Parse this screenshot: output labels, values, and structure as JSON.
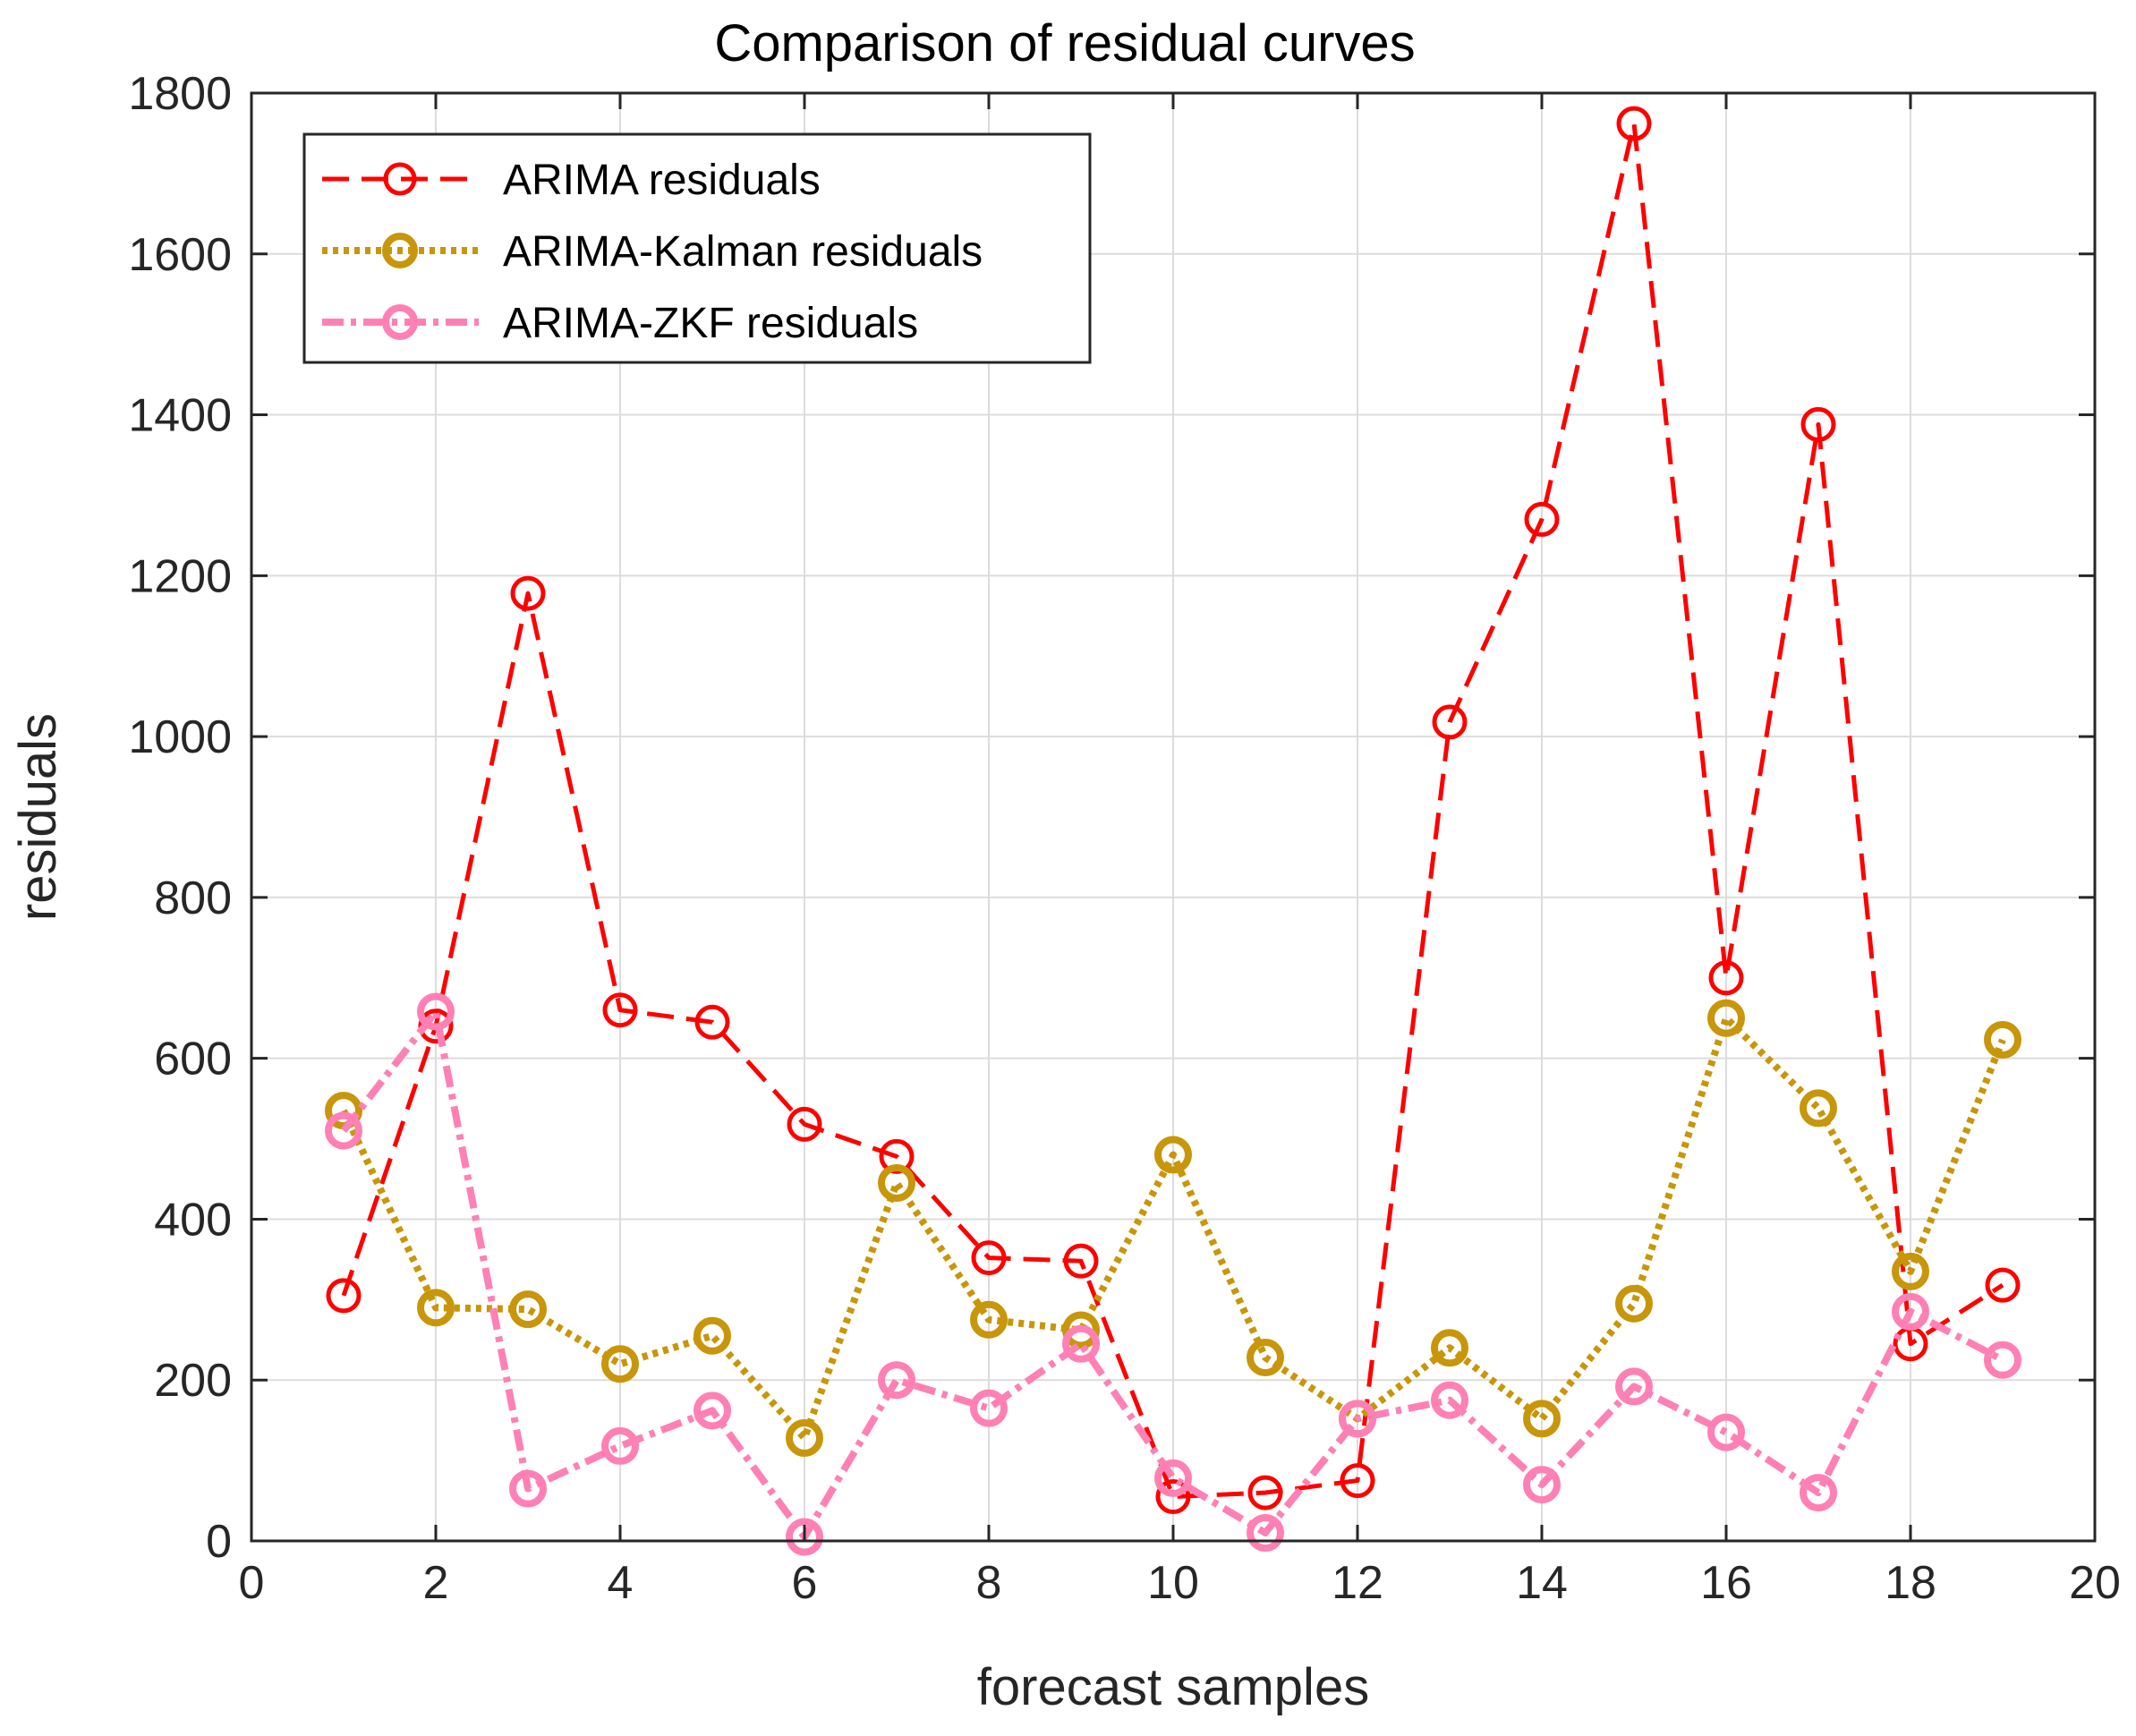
{
  "chart_data": {
    "type": "line",
    "title": "Comparison of residual curves",
    "xlabel": "forecast samples",
    "ylabel": "residuals",
    "xlim": [
      0,
      20
    ],
    "ylim": [
      0,
      1800
    ],
    "xticks": [
      0,
      2,
      4,
      6,
      8,
      10,
      12,
      14,
      16,
      18,
      20
    ],
    "yticks": [
      0,
      200,
      400,
      600,
      800,
      1000,
      1200,
      1400,
      1600,
      1800
    ],
    "grid": true,
    "legend_position": "top-left",
    "x": [
      1,
      2,
      3,
      4,
      5,
      6,
      7,
      8,
      9,
      10,
      11,
      12,
      13,
      14,
      15,
      16,
      17,
      18,
      19
    ],
    "series": [
      {
        "name": "ARIMA residuals",
        "color": "#ff0000",
        "line_style": "dashed",
        "values": [
          305,
          640,
          1178,
          660,
          645,
          518,
          478,
          352,
          348,
          55,
          60,
          75,
          1018,
          1270,
          1762,
          700,
          1388,
          245,
          318
        ]
      },
      {
        "name": "ARIMA-Kalman residuals",
        "color": "#c8960a",
        "line_style": "dotted",
        "values": [
          535,
          290,
          288,
          220,
          255,
          128,
          445,
          275,
          262,
          480,
          228,
          152,
          240,
          152,
          295,
          650,
          538,
          335,
          623
        ]
      },
      {
        "name": "ARIMA-ZKF residuals",
        "color": "#ff80b4",
        "line_style": "dash-dot",
        "values": [
          510,
          658,
          65,
          118,
          162,
          5,
          200,
          165,
          245,
          78,
          10,
          152,
          175,
          70,
          192,
          135,
          60,
          285,
          225
        ]
      }
    ]
  }
}
